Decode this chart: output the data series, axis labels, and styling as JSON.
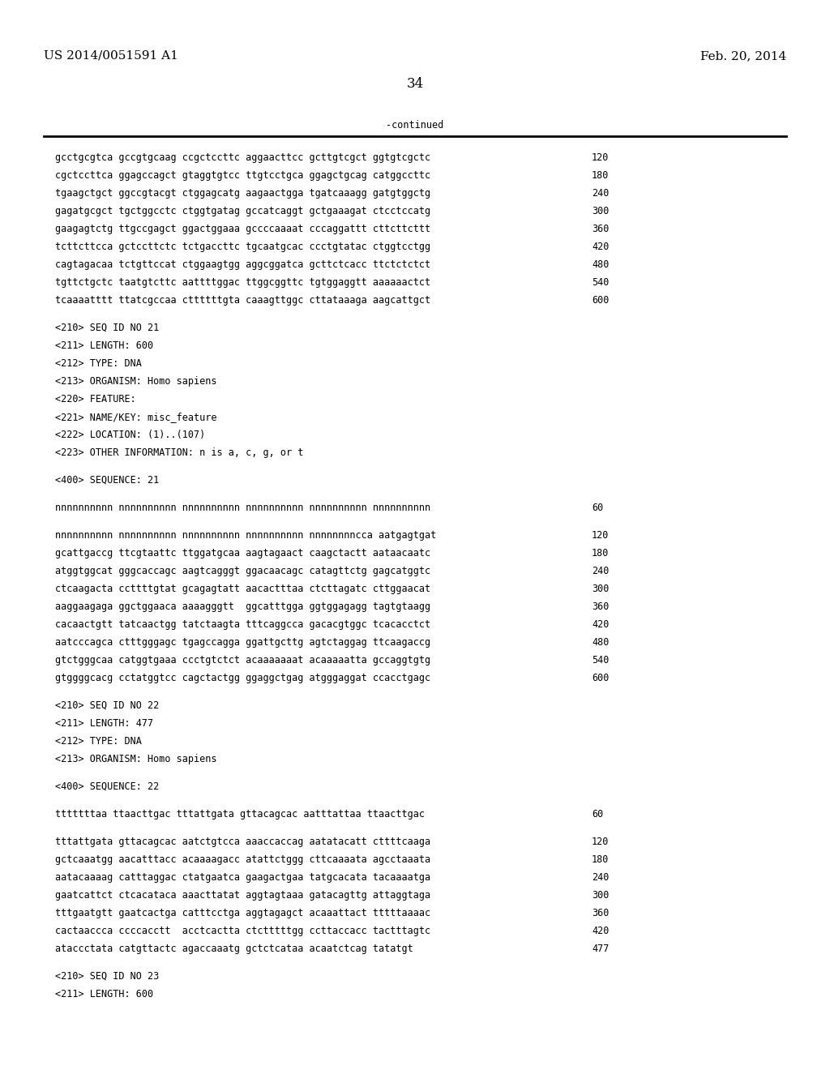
{
  "background_color": "#ffffff",
  "header_left": "US 2014/0051591 A1",
  "header_right": "Feb. 20, 2014",
  "page_number": "34",
  "continued_label": "-continued",
  "font_size_header": 11,
  "font_size_body": 8.5,
  "font_size_page": 12,
  "lines": [
    {
      "text": "gcctgcgtca gccgtgcaag ccgctccttc aggaacttcc gcttgtcgct ggtgtcgctc",
      "num": "120",
      "type": "seq"
    },
    {
      "text": "cgctccttca ggagccagct gtaggtgtcc ttgtcctgca ggagctgcag catggccttc",
      "num": "180",
      "type": "seq"
    },
    {
      "text": "tgaagctgct ggccgtacgt ctggagcatg aagaactgga tgatcaaagg gatgtggctg",
      "num": "240",
      "type": "seq"
    },
    {
      "text": "gagatgcgct tgctggcctc ctggtgatag gccatcaggt gctgaaagat ctcctccatg",
      "num": "300",
      "type": "seq"
    },
    {
      "text": "gaagagtctg ttgccgagct ggactggaaa gccccaaaat cccaggattt cttcttcttt",
      "num": "360",
      "type": "seq"
    },
    {
      "text": "tcttcttcca gctccttctc tctgaccttc tgcaatgcac ccctgtatac ctggtcctgg",
      "num": "420",
      "type": "seq"
    },
    {
      "text": "cagtagacaa tctgttccat ctggaagtgg aggcggatca gcttctcacc ttctctctct",
      "num": "480",
      "type": "seq"
    },
    {
      "text": "tgttctgctc taatgtcttc aattttggac ttggcggttc tgtggaggtt aaaaaactct",
      "num": "540",
      "type": "seq"
    },
    {
      "text": "tcaaaatttt ttatcgccaa cttttttgta caaagttggc cttataaaga aagcattgct",
      "num": "600",
      "type": "seq"
    },
    {
      "text": "",
      "num": "",
      "type": "blank_large"
    },
    {
      "text": "<210> SEQ ID NO 21",
      "num": "",
      "type": "meta"
    },
    {
      "text": "<211> LENGTH: 600",
      "num": "",
      "type": "meta"
    },
    {
      "text": "<212> TYPE: DNA",
      "num": "",
      "type": "meta"
    },
    {
      "text": "<213> ORGANISM: Homo sapiens",
      "num": "",
      "type": "meta"
    },
    {
      "text": "<220> FEATURE:",
      "num": "",
      "type": "meta"
    },
    {
      "text": "<221> NAME/KEY: misc_feature",
      "num": "",
      "type": "meta"
    },
    {
      "text": "<222> LOCATION: (1)..(107)",
      "num": "",
      "type": "meta"
    },
    {
      "text": "<223> OTHER INFORMATION: n is a, c, g, or t",
      "num": "",
      "type": "meta"
    },
    {
      "text": "",
      "num": "",
      "type": "blank_large"
    },
    {
      "text": "<400> SEQUENCE: 21",
      "num": "",
      "type": "meta"
    },
    {
      "text": "",
      "num": "",
      "type": "blank_large"
    },
    {
      "text": "nnnnnnnnnn nnnnnnnnnn nnnnnnnnnn nnnnnnnnnn nnnnnnnnnn nnnnnnnnnn",
      "num": "60",
      "type": "seq"
    },
    {
      "text": "",
      "num": "",
      "type": "blank_large"
    },
    {
      "text": "nnnnnnnnnn nnnnnnnnnn nnnnnnnnnn nnnnnnnnnn nnnnnnnncca aatgagtgat",
      "num": "120",
      "type": "seq"
    },
    {
      "text": "gcattgaccg ttcgtaattc ttggatgcaa aagtagaact caagctactt aataacaatc",
      "num": "180",
      "type": "seq"
    },
    {
      "text": "atggtggcat gggcaccagc aagtcagggt ggacaacagc catagttctg gagcatggtc",
      "num": "240",
      "type": "seq"
    },
    {
      "text": "ctcaagacta ccttttgtat gcagagtatt aacactttaa ctcttagatc cttggaacat",
      "num": "300",
      "type": "seq"
    },
    {
      "text": "aaggaagaga ggctggaaca aaaagggtt  ggcatttgga ggtggagagg tagtgtaagg",
      "num": "360",
      "type": "seq"
    },
    {
      "text": "cacaactgtt tatcaactgg tatctaagta tttcaggcca gacacgtggc tcacacctct",
      "num": "420",
      "type": "seq"
    },
    {
      "text": "aatcccagca ctttgggagc tgagccagga ggattgcttg agtctaggag ttcaagaccg",
      "num": "480",
      "type": "seq"
    },
    {
      "text": "gtctgggcaa catggtgaaa ccctgtctct acaaaaaaat acaaaaatta gccaggtgtg",
      "num": "540",
      "type": "seq"
    },
    {
      "text": "gtggggcacg cctatggtcc cagctactgg ggaggctgag atgggaggat ccacctgagc",
      "num": "600",
      "type": "seq"
    },
    {
      "text": "",
      "num": "",
      "type": "blank_large"
    },
    {
      "text": "<210> SEQ ID NO 22",
      "num": "",
      "type": "meta"
    },
    {
      "text": "<211> LENGTH: 477",
      "num": "",
      "type": "meta"
    },
    {
      "text": "<212> TYPE: DNA",
      "num": "",
      "type": "meta"
    },
    {
      "text": "<213> ORGANISM: Homo sapiens",
      "num": "",
      "type": "meta"
    },
    {
      "text": "",
      "num": "",
      "type": "blank_large"
    },
    {
      "text": "<400> SEQUENCE: 22",
      "num": "",
      "type": "meta"
    },
    {
      "text": "",
      "num": "",
      "type": "blank_large"
    },
    {
      "text": "tttttttaa ttaacttgac tttattgata gttacagcac aatttattaa ttaacttgac",
      "num": "60",
      "type": "seq"
    },
    {
      "text": "",
      "num": "",
      "type": "blank_large"
    },
    {
      "text": "tttattgata gttacagcac aatctgtcca aaaccaccag aatatacatt cttttcaaga",
      "num": "120",
      "type": "seq"
    },
    {
      "text": "gctcaaatgg aacatttacc acaaaagacc atattctggg cttcaaaata agcctaaata",
      "num": "180",
      "type": "seq"
    },
    {
      "text": "aatacaaaag catttaggac ctatgaatca gaagactgaa tatgcacata tacaaaatga",
      "num": "240",
      "type": "seq"
    },
    {
      "text": "gaatcattct ctcacataca aaacttatat aggtagtaaa gatacagttg attaggtaga",
      "num": "300",
      "type": "seq"
    },
    {
      "text": "tttgaatgtt gaatcactga catttcctga aggtagagct acaaattact tttttaaaac",
      "num": "360",
      "type": "seq"
    },
    {
      "text": "cactaaccca ccccacctt  acctcactta ctctttttgg ccttaccacc tactttagtc",
      "num": "420",
      "type": "seq"
    },
    {
      "text": "ataccctata catgttactc agaccaaatg gctctcataa acaatctcag tatatgt",
      "num": "477",
      "type": "seq"
    },
    {
      "text": "",
      "num": "",
      "type": "blank_large"
    },
    {
      "text": "<210> SEQ ID NO 23",
      "num": "",
      "type": "meta"
    },
    {
      "text": "<211> LENGTH: 600",
      "num": "",
      "type": "meta"
    }
  ]
}
